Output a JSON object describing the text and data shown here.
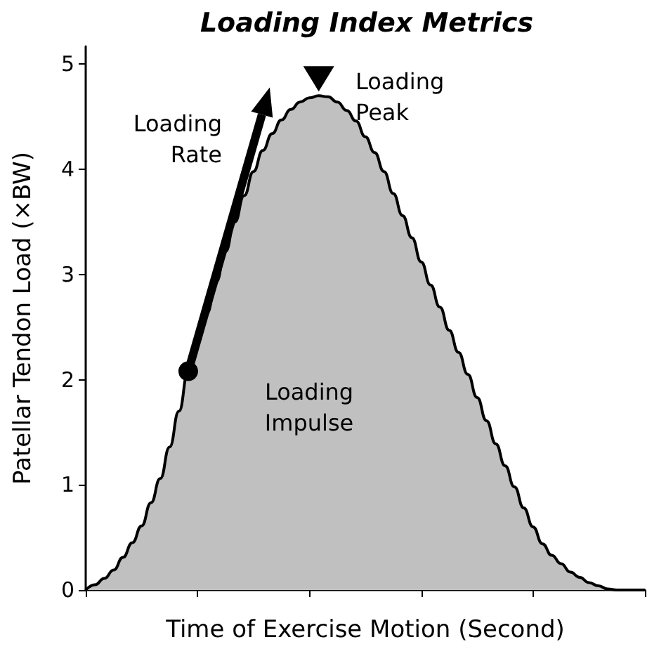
{
  "chart_data": {
    "type": "area",
    "title": "Loading Index Metrics",
    "xlabel": "Time of Exercise Motion (Second)",
    "ylabel": "Patellar Tendon Load (×BW)",
    "categories": [
      null,
      null,
      null,
      null,
      null,
      null,
      null,
      null,
      null,
      null,
      null,
      null,
      null,
      null,
      null,
      null,
      null,
      null,
      null,
      null,
      null,
      null,
      null,
      null,
      null,
      null,
      null,
      null,
      null,
      null,
      null,
      null,
      null,
      null,
      null,
      null,
      null,
      null,
      null,
      null,
      null,
      null,
      null,
      null,
      null,
      null,
      null,
      null,
      null,
      null,
      null,
      null,
      null,
      null,
      null,
      null,
      null,
      null,
      null,
      null,
      null
    ],
    "series": [
      {
        "color": "#c0c0c0",
        "values": [
          0,
          0.05,
          0.11,
          0.19,
          0.31,
          0.45,
          0.61,
          0.83,
          1.06,
          1.36,
          1.7,
          2.08,
          2.38,
          2.63,
          2.93,
          3.22,
          3.5,
          3.75,
          3.98,
          4.18,
          4.34,
          4.47,
          4.57,
          4.64,
          4.68,
          4.7,
          4.69,
          4.64,
          4.56,
          4.46,
          4.31,
          4.16,
          3.98,
          3.77,
          3.56,
          3.35,
          3.12,
          2.9,
          2.69,
          2.47,
          2.26,
          2.05,
          1.83,
          1.61,
          1.39,
          1.18,
          0.98,
          0.78,
          0.6,
          0.44,
          0.33,
          0.25,
          0.17,
          0.12,
          0.07,
          0.04,
          0.01,
          0,
          0,
          0,
          0
        ]
      }
    ],
    "ylim": [
      0,
      5.17
    ],
    "yticks": [
      0,
      1,
      2,
      3,
      4,
      5
    ],
    "annotations": [
      "Loading\nRate",
      "Loading\nPeak",
      "Loading\nImpulse"
    ],
    "grid": false,
    "line_style": "solid"
  }
}
